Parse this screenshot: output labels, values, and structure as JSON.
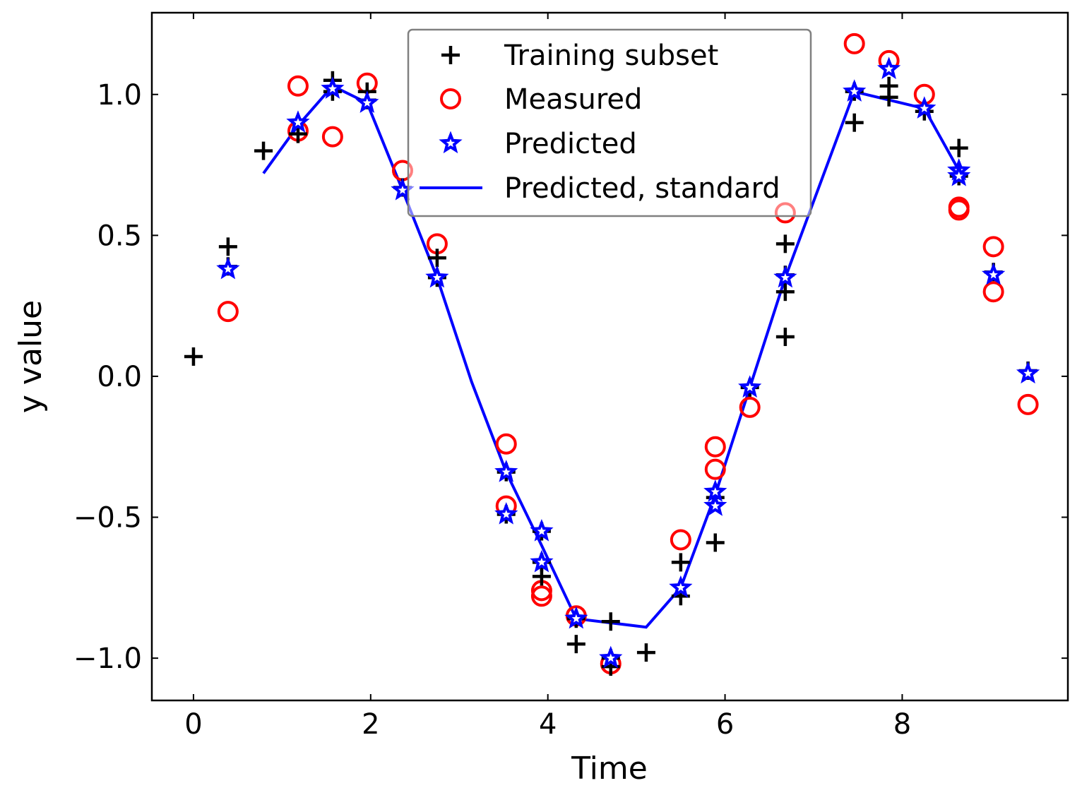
{
  "chart_data": {
    "type": "scatter",
    "xlabel": "Time",
    "ylabel": "y value",
    "xlim": [
      -0.47,
      9.87
    ],
    "ylim": [
      -1.15,
      1.29
    ],
    "xticks": [
      0,
      2,
      4,
      6,
      8
    ],
    "xtick_labels": [
      "0",
      "2",
      "4",
      "6",
      "8"
    ],
    "yticks": [
      -1.0,
      -0.5,
      0.0,
      0.5,
      1.0
    ],
    "ytick_labels": [
      "−1.0",
      "−0.5",
      "0.0",
      "0.5",
      "1.0"
    ],
    "grid": false,
    "legend_position": "top-center",
    "series": [
      {
        "name": "Training subset",
        "marker": "plus",
        "color": "#000000",
        "points": [
          [
            0.0,
            0.07
          ],
          [
            0.39,
            0.46
          ],
          [
            0.39,
            0.39
          ],
          [
            0.79,
            0.8
          ],
          [
            1.18,
            0.86
          ],
          [
            1.57,
            1.05
          ],
          [
            1.57,
            1.01
          ],
          [
            1.96,
            1.01
          ],
          [
            1.96,
            0.98
          ],
          [
            2.36,
            0.67
          ],
          [
            2.75,
            0.42
          ],
          [
            2.75,
            0.35
          ],
          [
            3.53,
            -0.34
          ],
          [
            3.53,
            -0.49
          ],
          [
            3.93,
            -0.71
          ],
          [
            3.93,
            -0.66
          ],
          [
            3.93,
            -0.55
          ],
          [
            4.32,
            -0.86
          ],
          [
            4.32,
            -0.95
          ],
          [
            4.71,
            -0.87
          ],
          [
            4.71,
            -1.03
          ],
          [
            4.71,
            -1.0
          ],
          [
            5.11,
            -0.98
          ],
          [
            5.5,
            -0.66
          ],
          [
            5.5,
            -0.78
          ],
          [
            5.89,
            -0.59
          ],
          [
            5.89,
            -0.43
          ],
          [
            6.28,
            -0.04
          ],
          [
            6.68,
            0.47
          ],
          [
            6.68,
            0.3
          ],
          [
            6.68,
            0.14
          ],
          [
            6.68,
            0.36
          ],
          [
            7.46,
            0.9
          ],
          [
            7.46,
            1.01
          ],
          [
            7.85,
            1.03
          ],
          [
            7.85,
            0.99
          ],
          [
            8.25,
            0.94
          ],
          [
            8.64,
            0.81
          ],
          [
            8.64,
            0.71
          ],
          [
            9.03,
            0.37
          ],
          [
            9.42,
            0.02
          ]
        ]
      },
      {
        "name": "Measured",
        "marker": "circle",
        "color": "#ff0000",
        "points": [
          [
            0.39,
            0.23
          ],
          [
            1.18,
            1.03
          ],
          [
            1.18,
            0.87
          ],
          [
            1.57,
            0.85
          ],
          [
            1.96,
            1.04
          ],
          [
            2.36,
            0.73
          ],
          [
            2.75,
            0.47
          ],
          [
            3.53,
            -0.24
          ],
          [
            3.53,
            -0.46
          ],
          [
            3.93,
            -0.76
          ],
          [
            3.93,
            -0.78
          ],
          [
            4.32,
            -0.85
          ],
          [
            4.71,
            -1.02
          ],
          [
            5.5,
            -0.58
          ],
          [
            5.89,
            -0.25
          ],
          [
            5.89,
            -0.33
          ],
          [
            6.28,
            -0.11
          ],
          [
            6.68,
            0.58
          ],
          [
            7.46,
            1.18
          ],
          [
            7.85,
            1.12
          ],
          [
            8.25,
            1.0
          ],
          [
            8.64,
            0.6
          ],
          [
            8.64,
            0.59
          ],
          [
            9.03,
            0.46
          ],
          [
            9.03,
            0.3
          ],
          [
            9.42,
            -0.1
          ]
        ]
      },
      {
        "name": "Predicted",
        "marker": "star",
        "color": "#0000ff",
        "points": [
          [
            0.39,
            0.38
          ],
          [
            1.18,
            0.9
          ],
          [
            1.57,
            1.02
          ],
          [
            1.96,
            0.97
          ],
          [
            2.36,
            0.66
          ],
          [
            2.75,
            0.35
          ],
          [
            3.53,
            -0.34
          ],
          [
            3.53,
            -0.49
          ],
          [
            3.93,
            -0.55
          ],
          [
            3.93,
            -0.66
          ],
          [
            4.32,
            -0.86
          ],
          [
            4.71,
            -1.0
          ],
          [
            5.5,
            -0.75
          ],
          [
            5.89,
            -0.41
          ],
          [
            5.89,
            -0.46
          ],
          [
            6.28,
            -0.04
          ],
          [
            6.68,
            0.35
          ],
          [
            7.46,
            1.01
          ],
          [
            7.85,
            1.09
          ],
          [
            8.25,
            0.95
          ],
          [
            8.64,
            0.73
          ],
          [
            8.64,
            0.71
          ],
          [
            9.03,
            0.36
          ],
          [
            9.42,
            0.01
          ]
        ]
      },
      {
        "name": "Predicted, standard",
        "marker": "line",
        "color": "#0000ff",
        "points": [
          [
            0.79,
            0.72
          ],
          [
            1.18,
            0.89
          ],
          [
            1.57,
            1.03
          ],
          [
            1.96,
            0.97
          ],
          [
            2.36,
            0.66
          ],
          [
            2.75,
            0.35
          ],
          [
            3.14,
            -0.02
          ],
          [
            3.53,
            -0.34
          ],
          [
            3.93,
            -0.6
          ],
          [
            4.32,
            -0.86
          ],
          [
            5.11,
            -0.89
          ],
          [
            5.5,
            -0.75
          ],
          [
            5.89,
            -0.42
          ],
          [
            6.28,
            -0.04
          ],
          [
            6.68,
            0.35
          ],
          [
            7.46,
            1.01
          ],
          [
            8.25,
            0.95
          ],
          [
            8.64,
            0.73
          ]
        ]
      }
    ]
  }
}
